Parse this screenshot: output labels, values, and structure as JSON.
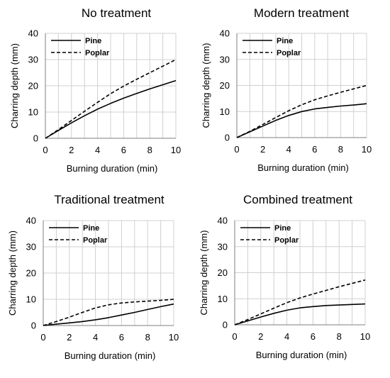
{
  "chart_data": [
    {
      "type": "line",
      "title": "No treatment",
      "xlabel": "Burning duration (min)",
      "ylabel": "Charring depth (mm)",
      "xlim": [
        0,
        10
      ],
      "ylim": [
        0,
        40
      ],
      "xticks": [
        "0",
        "2",
        "4",
        "6",
        "8",
        "10"
      ],
      "yticks": [
        "0",
        "10",
        "20",
        "30",
        "40"
      ],
      "grid": "vertical",
      "legend": "top-left",
      "series": [
        {
          "name": "Pine",
          "style": "solid",
          "color": "#000000",
          "x": [
            0,
            1,
            2,
            3,
            4,
            5,
            6,
            7,
            8,
            9,
            10
          ],
          "y": [
            0,
            3,
            5.9,
            8.6,
            11.1,
            13.3,
            15.3,
            17.1,
            18.8,
            20.4,
            22
          ]
        },
        {
          "name": "Poplar",
          "style": "dashed",
          "color": "#000000",
          "x": [
            0,
            1,
            2,
            3,
            4,
            5,
            6,
            7,
            8,
            9,
            10
          ],
          "y": [
            0,
            3.3,
            6.8,
            10.3,
            13.7,
            17,
            19.9,
            22.5,
            25,
            27.5,
            30
          ]
        }
      ]
    },
    {
      "type": "line",
      "title": "Modern treatment",
      "xlabel": "Burning duration (min)",
      "ylabel": "Charring depth (mm)",
      "xlim": [
        0,
        10
      ],
      "ylim": [
        0,
        40
      ],
      "xticks": [
        "0",
        "2",
        "4",
        "6",
        "8",
        "10"
      ],
      "yticks": [
        "0",
        "10",
        "20",
        "30",
        "40"
      ],
      "grid": "vertical",
      "legend": "top-left",
      "series": [
        {
          "name": "Pine",
          "style": "solid",
          "color": "#000000",
          "x": [
            0,
            1,
            2,
            3,
            4,
            5,
            6,
            7,
            8,
            9,
            10
          ],
          "y": [
            0,
            2.2,
            4.4,
            6.6,
            8.5,
            10,
            11,
            11.6,
            12.1,
            12.5,
            13
          ]
        },
        {
          "name": "Poplar",
          "style": "dashed",
          "color": "#000000",
          "x": [
            0,
            1,
            2,
            3,
            4,
            5,
            6,
            7,
            8,
            9,
            10
          ],
          "y": [
            0,
            2.4,
            5,
            7.7,
            10.3,
            12.6,
            14.5,
            16,
            17.4,
            18.7,
            20
          ]
        }
      ]
    },
    {
      "type": "line",
      "title": "Traditional treatment",
      "xlabel": "Burning duration (min)",
      "ylabel": "Charring depth (mm)",
      "xlim": [
        0,
        10
      ],
      "ylim": [
        0,
        40
      ],
      "xticks": [
        "0",
        "2",
        "4",
        "6",
        "8",
        "10"
      ],
      "yticks": [
        "0",
        "10",
        "20",
        "30",
        "40"
      ],
      "grid": "vertical",
      "legend": "top-left",
      "series": [
        {
          "name": "Pine",
          "style": "solid",
          "color": "#000000",
          "x": [
            0,
            1,
            2,
            3,
            4,
            5,
            6,
            7,
            8,
            9,
            10
          ],
          "y": [
            0,
            0.5,
            1,
            1.5,
            2.2,
            3,
            4,
            5,
            6.1,
            7.2,
            8.2
          ]
        },
        {
          "name": "Poplar",
          "style": "dashed",
          "color": "#000000",
          "x": [
            0,
            1,
            2,
            3,
            4,
            5,
            6,
            7,
            8,
            9,
            10
          ],
          "y": [
            0,
            1.5,
            3.2,
            5,
            6.7,
            7.9,
            8.6,
            9,
            9.3,
            9.6,
            10
          ]
        }
      ]
    },
    {
      "type": "line",
      "title": "Combined treatment",
      "xlabel": "Burning duration (min)",
      "ylabel": "Charring depth (mm)",
      "xlim": [
        0,
        10
      ],
      "ylim": [
        0,
        40
      ],
      "xticks": [
        "0",
        "2",
        "4",
        "6",
        "8",
        "10"
      ],
      "yticks": [
        "0",
        "10",
        "20",
        "30",
        "40"
      ],
      "grid": "vertical",
      "legend": "top-left",
      "series": [
        {
          "name": "Pine",
          "style": "solid",
          "color": "#000000",
          "x": [
            0,
            1,
            2,
            3,
            4,
            5,
            6,
            7,
            8,
            9,
            10
          ],
          "y": [
            0,
            1.5,
            3,
            4.4,
            5.6,
            6.5,
            7,
            7.4,
            7.6,
            7.8,
            8
          ]
        },
        {
          "name": "Poplar",
          "style": "dashed",
          "color": "#000000",
          "x": [
            0,
            1,
            2,
            3,
            4,
            5,
            6,
            7,
            8,
            9,
            10
          ],
          "y": [
            0,
            2,
            4.2,
            6.4,
            8.5,
            10.3,
            11.8,
            13.2,
            14.6,
            15.9,
            17.2
          ]
        }
      ]
    }
  ]
}
